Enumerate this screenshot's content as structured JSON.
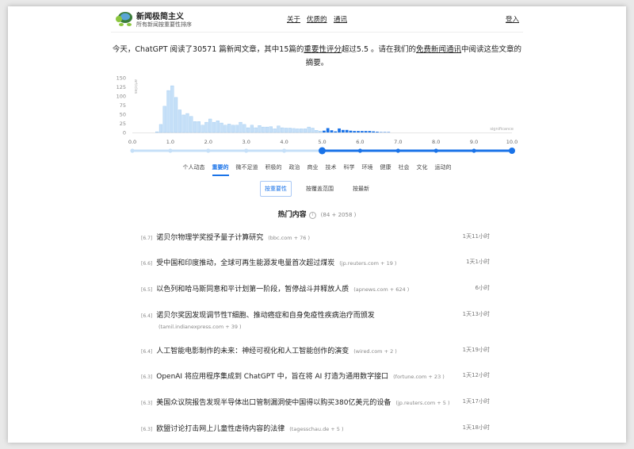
{
  "header": {
    "brand": "新闻极简主义",
    "tagline": "所有新闻按重要性排序",
    "nav": [
      "关于",
      "优质的",
      "通讯"
    ],
    "login": "登入",
    "logo_icon": "turtle-icon"
  },
  "summary": {
    "p1": "今天，ChatGPT 阅读了30571 篇新闻文章，其中15篇的",
    "link1": "重要性评分",
    "p2": "超过5.5 。请在我们的",
    "link2": "免费新闻通讯",
    "p3": "中阅读这些文章的摘要。"
  },
  "chart_data": {
    "type": "bar",
    "xlabel": "significance",
    "ylabel": "articles",
    "xlim": [
      0,
      10
    ],
    "ylim": [
      0,
      150
    ],
    "yticks": [
      "0",
      "25",
      "50",
      "75",
      "100",
      "125",
      "150"
    ],
    "xticks": [
      "0.0",
      "1.0",
      "2.0",
      "3.0",
      "4.0",
      "5.0",
      "6.0",
      "7.0",
      "8.0",
      "9.0",
      "10.0"
    ],
    "bin_width": 0.1,
    "bin_start": 0.6,
    "values": [
      2,
      22,
      72,
      115,
      128,
      96,
      62,
      48,
      52,
      44,
      30,
      30,
      20,
      28,
      37,
      28,
      32,
      26,
      20,
      23,
      20,
      20,
      28,
      22,
      13,
      20,
      13,
      19,
      15,
      15,
      16,
      10,
      18,
      13,
      12,
      12,
      11,
      10,
      10,
      10,
      15,
      12,
      6,
      4,
      5,
      12,
      6,
      3,
      11,
      7,
      7,
      5,
      4,
      4,
      4,
      4,
      4,
      3,
      2,
      1,
      1,
      1
    ],
    "threshold": 5.0,
    "colors": {
      "below": "#c6e0f8",
      "below_edge": "#9cc7ef",
      "above": "#1a73e8",
      "slider_inactive": "#c6e0f8"
    }
  },
  "categories": {
    "items": [
      "个人动态",
      "重要的",
      "微不足道",
      "积极的",
      "政治",
      "商业",
      "技术",
      "科学",
      "环境",
      "健康",
      "社会",
      "文化",
      "运动的"
    ],
    "active": 1
  },
  "sorts": {
    "items": [
      "按重要性",
      "按覆盖范围",
      "按最新"
    ],
    "active": 0
  },
  "section": {
    "title": "热门内容",
    "count": "(84 + 2058 )"
  },
  "news": [
    {
      "score": "[6.7]",
      "title": "诺贝尔物理学奖授予量子计算研究",
      "source": "(bbc.com + 76 )",
      "time": "1天11小时"
    },
    {
      "score": "[6.6]",
      "title": "受中国和印度推动，全球可再生能源发电量首次超过煤炭",
      "source": "(jp.reuters.com + 19 )",
      "time": "1天1小时"
    },
    {
      "score": "[6.5]",
      "title": "以色列和哈马斯同意和平计划第一阶段，暂停战斗并释放人质",
      "source": "(apnews.com + 624 )",
      "time": "6小时"
    },
    {
      "score": "[6.4]",
      "title": "诺贝尔奖因发现调节性T细胞、推动癌症和自身免疫性疾病治疗而颁发",
      "source": "(tamil.indianexpress.com + 39 )",
      "time": "1天13小时",
      "wrap": true
    },
    {
      "score": "[6.4]",
      "title": "人工智能电影制作的未来：神经可视化和人工智能创作的演变",
      "source": "(wired.com + 2 )",
      "time": "1天19小时"
    },
    {
      "score": "[6.3]",
      "title": "OpenAI 将应用程序集成到 ChatGPT 中，旨在将 AI 打造为通用数字接口",
      "source": "(fortune.com + 23 )",
      "time": "1天12小时"
    },
    {
      "score": "[6.3]",
      "title": "美国众议院报告发现半导体出口管制漏洞使中国得以购买380亿美元的设备",
      "source": "(jp.reuters.com + 5 )",
      "time": "1天17小时"
    },
    {
      "score": "[6.3]",
      "title": "欧盟讨论打击网上儿童性虐待内容的法律",
      "source": "(tagesschau.de + 5 )",
      "time": "1天18小时"
    }
  ]
}
